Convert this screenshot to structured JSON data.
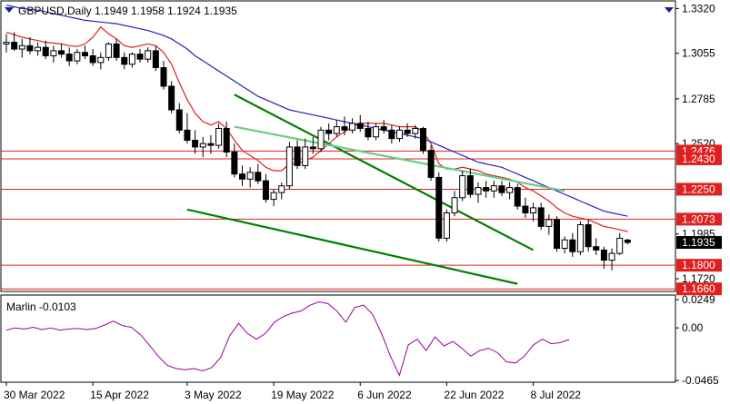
{
  "window": {
    "title": "GBPUSD,Daily  1.1949 1.1958 1.1924 1.1935"
  },
  "colors": {
    "background": "#ffffff",
    "axis": "#000000",
    "candle_up": "#ffffff",
    "candle_down": "#000000",
    "ma_fast": "#dd2020",
    "ma_slow": "#2020c0",
    "trend_lines": "#008000",
    "trend_upper_light": "#66cc88",
    "levels": "#e02020",
    "oscillator": "#990099",
    "price_badge_current": "#000000",
    "price_badge_level": "#e02020"
  },
  "chart_data": [
    {
      "type": "candlestick",
      "title": "GBPUSD,Daily  1.1949 1.1958 1.1924 1.1935",
      "ylim": [
        1.1645,
        1.3365
      ],
      "y_ticks": [
        "1.3320",
        "1.3055",
        "1.2785",
        "1.2520",
        "1.1985",
        "1.1720"
      ],
      "x_ticks": [
        "30 Mar 2022",
        "15 Apr 2022",
        "3 May 2022",
        "19 May 2022",
        "6 Jun 2022",
        "22 Jun 2022",
        "8 Jul 2022"
      ],
      "current_price": "1.1935",
      "levels": [
        {
          "price": 1.2476,
          "label": "1.2476"
        },
        {
          "price": 1.243,
          "label": "1.2430"
        },
        {
          "price": 1.225,
          "label": "1.2250"
        },
        {
          "price": 1.2073,
          "label": "1.2073"
        },
        {
          "price": 1.18,
          "label": "1.1800"
        },
        {
          "price": 1.166,
          "label": "1.1660"
        }
      ],
      "candles": [
        [
          1.311,
          1.317,
          1.306,
          1.312
        ],
        [
          1.312,
          1.318,
          1.307,
          1.308
        ],
        [
          1.308,
          1.314,
          1.303,
          1.31
        ],
        [
          1.31,
          1.315,
          1.305,
          1.307
        ],
        [
          1.307,
          1.312,
          1.304,
          1.309
        ],
        [
          1.309,
          1.313,
          1.302,
          1.304
        ],
        [
          1.304,
          1.31,
          1.3,
          1.307
        ],
        [
          1.307,
          1.311,
          1.303,
          1.305
        ],
        [
          1.305,
          1.309,
          1.298,
          1.301
        ],
        [
          1.301,
          1.308,
          1.299,
          1.306
        ],
        [
          1.306,
          1.31,
          1.302,
          1.304
        ],
        [
          1.304,
          1.308,
          1.298,
          1.3
        ],
        [
          1.3,
          1.306,
          1.296,
          1.303
        ],
        [
          1.303,
          1.312,
          1.301,
          1.311
        ],
        [
          1.311,
          1.314,
          1.301,
          1.303
        ],
        [
          1.303,
          1.306,
          1.296,
          1.299
        ],
        [
          1.299,
          1.306,
          1.297,
          1.305
        ],
        [
          1.305,
          1.308,
          1.3,
          1.302
        ],
        [
          1.302,
          1.309,
          1.3,
          1.307
        ],
        [
          1.307,
          1.31,
          1.295,
          1.297
        ],
        [
          1.297,
          1.301,
          1.284,
          1.286
        ],
        [
          1.286,
          1.289,
          1.27,
          1.272
        ],
        [
          1.272,
          1.276,
          1.258,
          1.26
        ],
        [
          1.26,
          1.27,
          1.252,
          1.254
        ],
        [
          1.254,
          1.26,
          1.246,
          1.25
        ],
        [
          1.25,
          1.256,
          1.244,
          1.252
        ],
        [
          1.252,
          1.257,
          1.246,
          1.251
        ],
        [
          1.251,
          1.264,
          1.249,
          1.261
        ],
        [
          1.261,
          1.265,
          1.244,
          1.247
        ],
        [
          1.247,
          1.252,
          1.232,
          1.234
        ],
        [
          1.234,
          1.239,
          1.227,
          1.231
        ],
        [
          1.231,
          1.238,
          1.226,
          1.235
        ],
        [
          1.235,
          1.24,
          1.228,
          1.23
        ],
        [
          1.23,
          1.234,
          1.217,
          1.219
        ],
        [
          1.219,
          1.225,
          1.215,
          1.223
        ],
        [
          1.223,
          1.229,
          1.219,
          1.227
        ],
        [
          1.227,
          1.253,
          1.225,
          1.25
        ],
        [
          1.25,
          1.254,
          1.237,
          1.239
        ],
        [
          1.239,
          1.255,
          1.237,
          1.25
        ],
        [
          1.25,
          1.256,
          1.246,
          1.249
        ],
        [
          1.249,
          1.262,
          1.247,
          1.26
        ],
        [
          1.26,
          1.264,
          1.254,
          1.258
        ],
        [
          1.258,
          1.266,
          1.256,
          1.262
        ],
        [
          1.262,
          1.268,
          1.257,
          1.26
        ],
        [
          1.26,
          1.267,
          1.258,
          1.264
        ],
        [
          1.264,
          1.269,
          1.259,
          1.261
        ],
        [
          1.261,
          1.265,
          1.254,
          1.256
        ],
        [
          1.256,
          1.264,
          1.254,
          1.262
        ],
        [
          1.262,
          1.266,
          1.258,
          1.26
        ],
        [
          1.26,
          1.263,
          1.252,
          1.255
        ],
        [
          1.255,
          1.262,
          1.253,
          1.26
        ],
        [
          1.26,
          1.264,
          1.256,
          1.258
        ],
        [
          1.258,
          1.263,
          1.255,
          1.261
        ],
        [
          1.261,
          1.262,
          1.246,
          1.248
        ],
        [
          1.248,
          1.251,
          1.23,
          1.232
        ],
        [
          1.232,
          1.235,
          1.194,
          1.196
        ],
        [
          1.196,
          1.213,
          1.194,
          1.211
        ],
        [
          1.211,
          1.224,
          1.209,
          1.22
        ],
        [
          1.22,
          1.236,
          1.218,
          1.233
        ],
        [
          1.233,
          1.237,
          1.22,
          1.222
        ],
        [
          1.222,
          1.229,
          1.217,
          1.226
        ],
        [
          1.226,
          1.23,
          1.22,
          1.224
        ],
        [
          1.224,
          1.23,
          1.22,
          1.227
        ],
        [
          1.227,
          1.23,
          1.221,
          1.223
        ],
        [
          1.223,
          1.229,
          1.219,
          1.226
        ],
        [
          1.226,
          1.228,
          1.213,
          1.215
        ],
        [
          1.215,
          1.22,
          1.208,
          1.211
        ],
        [
          1.211,
          1.217,
          1.206,
          1.214
        ],
        [
          1.214,
          1.217,
          1.201,
          1.203
        ],
        [
          1.203,
          1.21,
          1.198,
          1.207
        ],
        [
          1.207,
          1.209,
          1.188,
          1.19
        ],
        [
          1.19,
          1.197,
          1.187,
          1.195
        ],
        [
          1.195,
          1.199,
          1.185,
          1.188
        ],
        [
          1.188,
          1.206,
          1.186,
          1.204
        ],
        [
          1.204,
          1.207,
          1.188,
          1.191
        ],
        [
          1.191,
          1.196,
          1.186,
          1.189
        ],
        [
          1.189,
          1.191,
          1.178,
          1.183
        ],
        [
          1.183,
          1.19,
          1.177,
          1.187
        ],
        [
          1.187,
          1.199,
          1.186,
          1.196
        ],
        [
          1.1949,
          1.1958,
          1.1924,
          1.1935
        ]
      ],
      "series": [
        {
          "values": [
            1.318,
            1.3165,
            1.315,
            1.314,
            1.313,
            1.312,
            1.3115,
            1.311,
            1.31,
            1.3095,
            1.311,
            1.315,
            1.321,
            1.317,
            1.314,
            1.31,
            1.309,
            1.31,
            1.311,
            1.31,
            1.306,
            1.299,
            1.288,
            1.278,
            1.27,
            1.265,
            1.263,
            1.265,
            1.261,
            1.254,
            1.248,
            1.245,
            1.242,
            1.238,
            1.236,
            1.236,
            1.24,
            1.24,
            1.242,
            1.244,
            1.248,
            1.252,
            1.256,
            1.259,
            1.262,
            1.264,
            1.264,
            1.264,
            1.264,
            1.263,
            1.262,
            1.262,
            1.262,
            1.259,
            1.252,
            1.24,
            1.237,
            1.237,
            1.238,
            1.237,
            1.236,
            1.234,
            1.233,
            1.232,
            1.231,
            1.229,
            1.226,
            1.224,
            1.221,
            1.218,
            1.214,
            1.211,
            1.209,
            1.208,
            1.207,
            1.205,
            1.203,
            1.202,
            1.201,
            1.2
          ]
        },
        {
          "values": [
            1.334,
            1.333,
            1.332,
            1.3315,
            1.331,
            1.33,
            1.329,
            1.328,
            1.327,
            1.326,
            1.325,
            1.3245,
            1.324,
            1.3235,
            1.323,
            1.322,
            1.321,
            1.32,
            1.319,
            1.3175,
            1.316,
            1.314,
            1.311,
            1.308,
            1.304,
            1.301,
            1.298,
            1.295,
            1.292,
            1.289,
            1.286,
            1.283,
            1.28,
            1.278,
            1.276,
            1.274,
            1.272,
            1.271,
            1.27,
            1.269,
            1.268,
            1.267,
            1.266,
            1.265,
            1.264,
            1.263,
            1.262,
            1.261,
            1.26,
            1.259,
            1.258,
            1.257,
            1.256,
            1.255,
            1.253,
            1.251,
            1.249,
            1.247,
            1.245,
            1.243,
            1.241,
            1.24,
            1.239,
            1.238,
            1.236,
            1.234,
            1.232,
            1.23,
            1.228,
            1.226,
            1.224,
            1.222,
            1.22,
            1.218,
            1.216,
            1.214,
            1.212,
            1.211,
            1.21,
            1.209
          ]
        }
      ],
      "trendlines": [
        {
          "from": [
            29,
            1.281
          ],
          "to": [
            67,
            1.189
          ],
          "color": "green"
        },
        {
          "from": [
            23,
            1.213
          ],
          "to": [
            65,
            1.169
          ],
          "color": "green"
        },
        {
          "from": [
            29,
            1.262
          ],
          "to": [
            71,
            1.224
          ],
          "color": "lightgreen"
        }
      ]
    },
    {
      "type": "line",
      "title": "Marlin -0.0103",
      "ylim": [
        -0.048,
        0.029
      ],
      "y_ticks": [
        "0.0249",
        "0.00",
        "-0.0465"
      ],
      "series": [
        {
          "values": [
            -0.002,
            0.0,
            -0.001,
            0.0005,
            -0.0015,
            0.0,
            -0.002,
            -0.001,
            -0.0005,
            -0.0015,
            -0.0005,
            0.0025,
            0.006,
            0.002,
            0.0005,
            -0.006,
            -0.015,
            -0.025,
            -0.033,
            -0.036,
            -0.037,
            -0.036,
            -0.038,
            -0.035,
            -0.026,
            -0.007,
            0.004,
            -0.005,
            -0.01,
            -0.005,
            0.005,
            0.01,
            0.013,
            0.015,
            0.02,
            0.023,
            0.0215,
            0.015,
            0.005,
            0.018,
            0.02,
            0.012,
            -0.005,
            -0.025,
            -0.042,
            -0.015,
            -0.01,
            -0.02,
            -0.008,
            -0.016,
            -0.012,
            -0.018,
            -0.025,
            -0.02,
            -0.018,
            -0.022,
            -0.03,
            -0.031,
            -0.025,
            -0.015,
            -0.01,
            -0.014,
            -0.013,
            -0.0103
          ]
        }
      ]
    }
  ],
  "marlin_label": "Marlin -0.0103"
}
